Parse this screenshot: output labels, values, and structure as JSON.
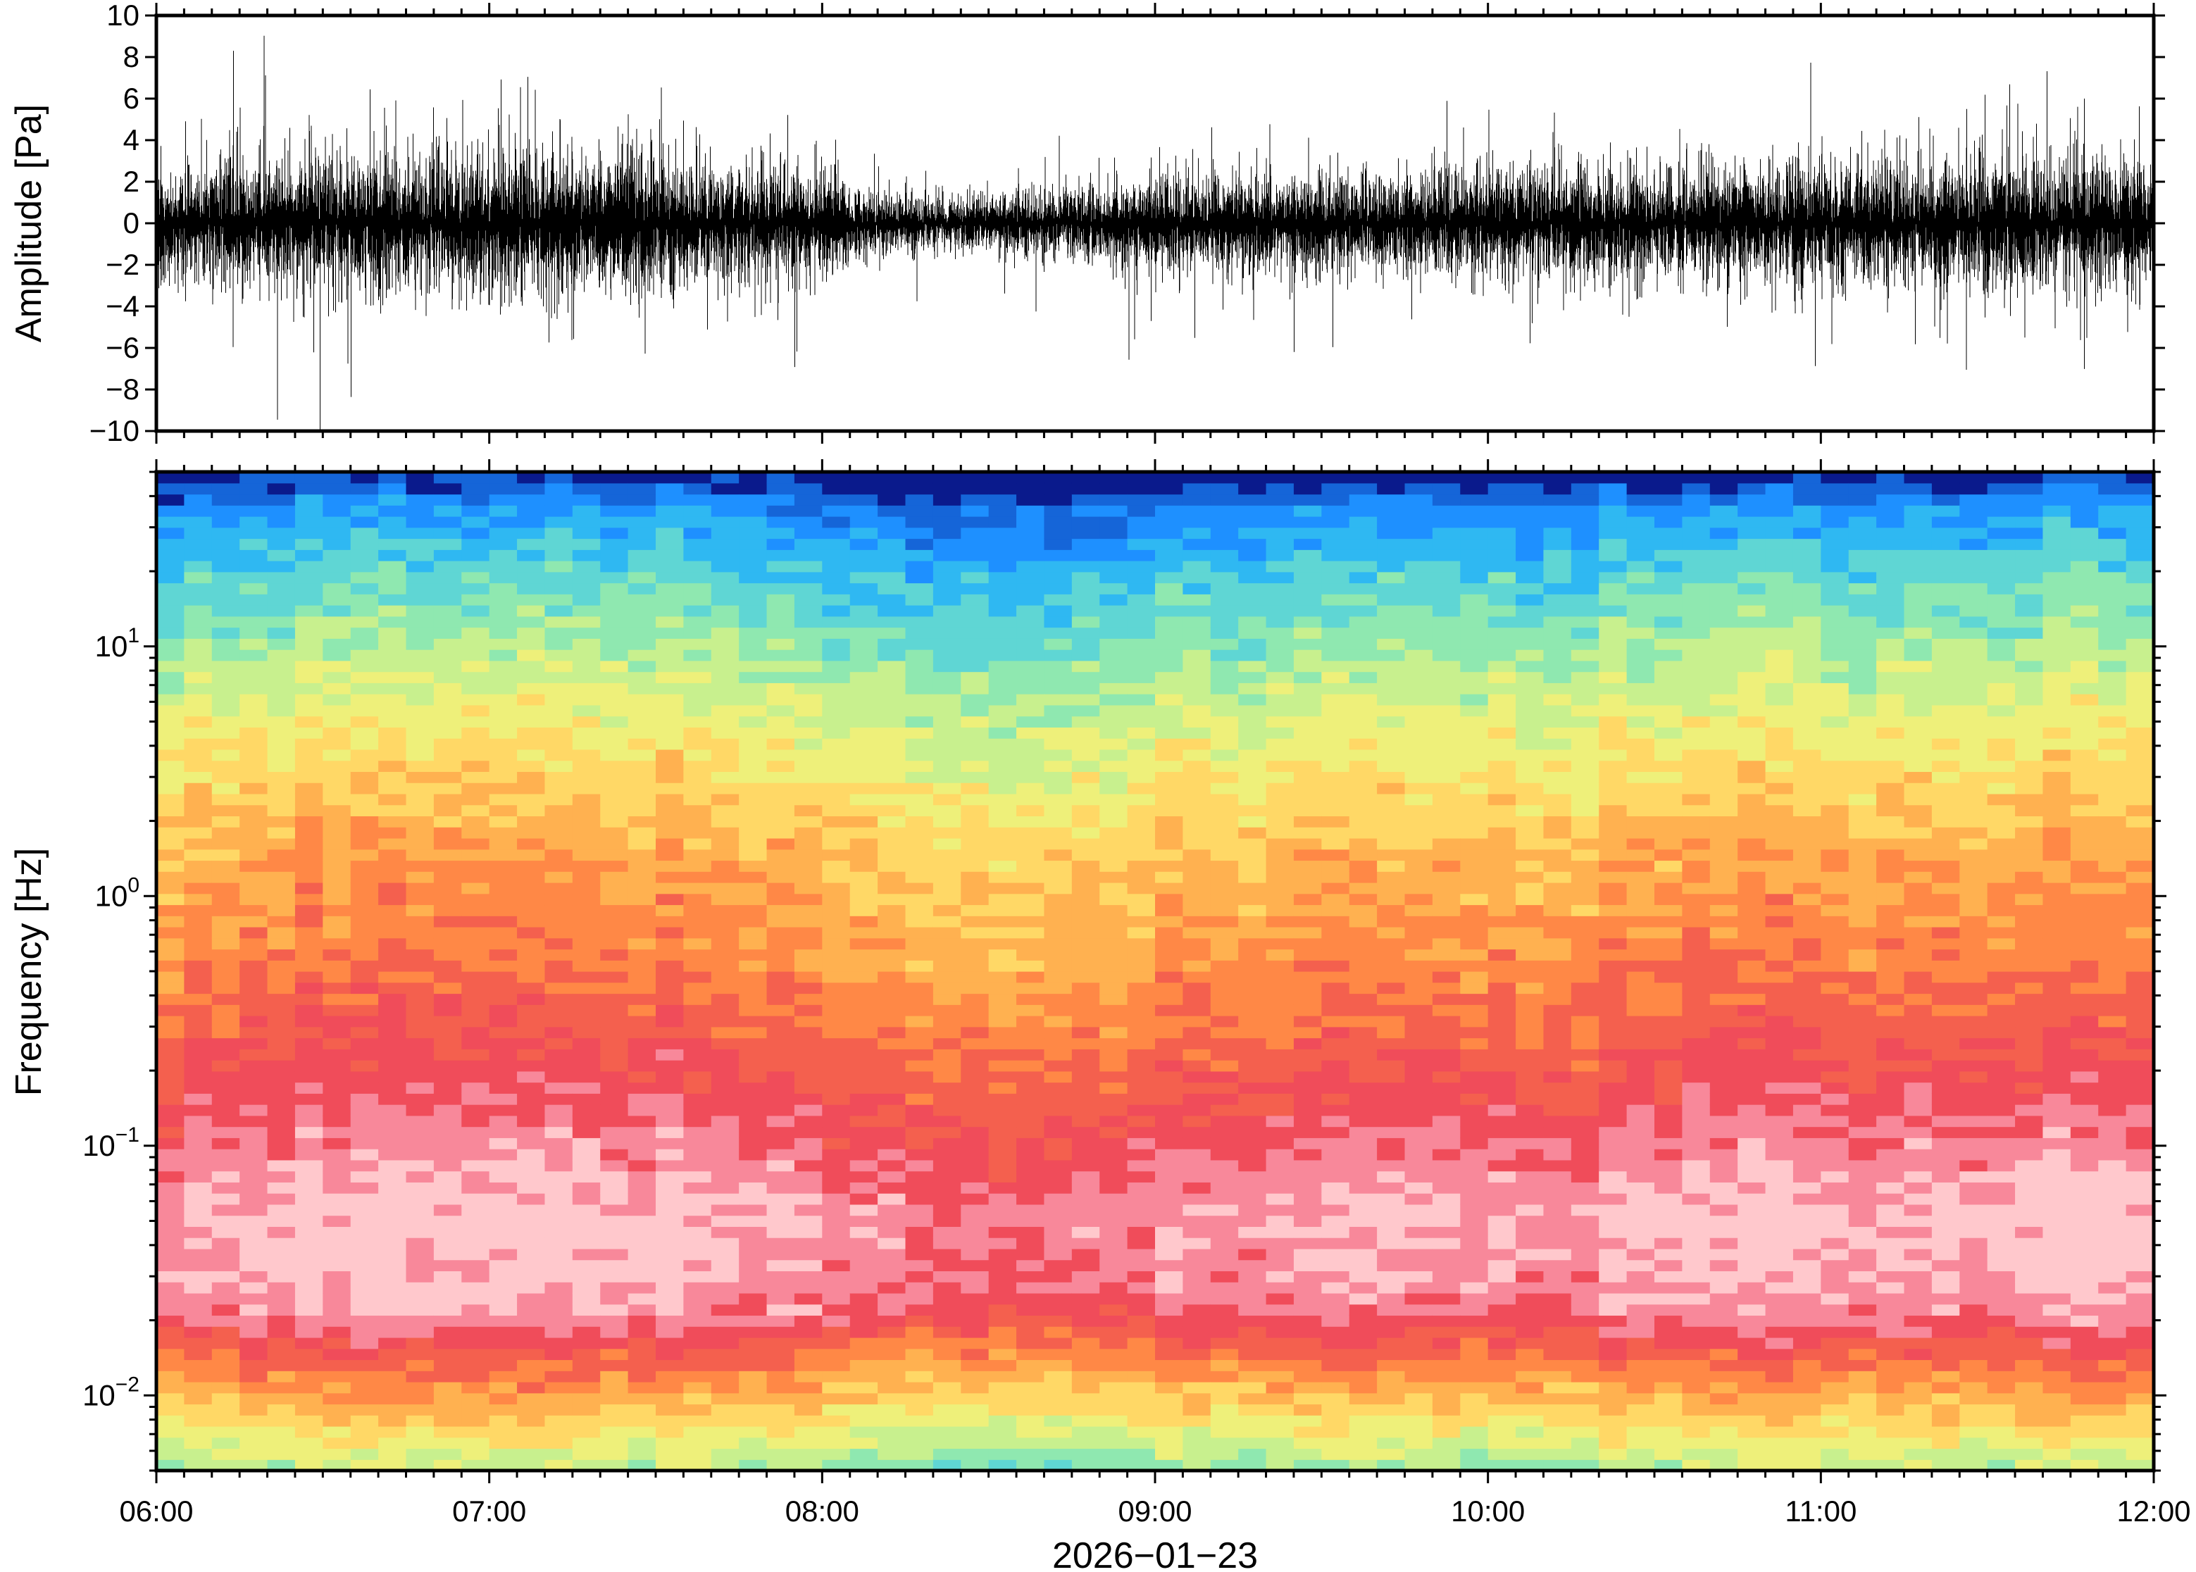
{
  "chart_data": [
    {
      "type": "line",
      "ylabel": "Amplitude [Pa]",
      "ylim": [
        -10,
        10
      ],
      "yticks": [
        10,
        8,
        6,
        4,
        2,
        0,
        -2,
        -4,
        -6,
        -8,
        -10
      ],
      "yticklabels": [
        "10",
        "8",
        "6",
        "4",
        "2",
        "0",
        "−2",
        "−4",
        "−6",
        "−8",
        "−10"
      ],
      "xlim": [
        "06:00",
        "12:00"
      ],
      "grid": false,
      "line_color": "#000000",
      "envelope": {
        "times": [
          "06:00",
          "06:15",
          "06:30",
          "06:45",
          "07:00",
          "07:15",
          "07:30",
          "07:45",
          "08:00",
          "08:15",
          "08:30",
          "08:45",
          "09:00",
          "09:15",
          "09:30",
          "09:45",
          "10:00",
          "10:15",
          "10:30",
          "10:45",
          "11:00",
          "11:15",
          "11:30",
          "11:45",
          "12:00"
        ],
        "rms_pa": [
          2.6,
          2.9,
          3.2,
          3.3,
          3.6,
          3.3,
          3.4,
          2.8,
          2.5,
          1.2,
          1.4,
          1.6,
          2.2,
          2.3,
          2.4,
          2.4,
          2.6,
          2.6,
          2.7,
          2.8,
          2.9,
          2.9,
          3.0,
          3.1,
          3.0
        ]
      }
    },
    {
      "type": "heatmap",
      "ylabel": "Frequency [Hz]",
      "yscale": "log",
      "ylim": [
        0.005,
        50
      ],
      "yticks": [
        0.01,
        0.1,
        1,
        10
      ],
      "yticklabels": [
        {
          "base": "10",
          "exp": "−2"
        },
        {
          "base": "10",
          "exp": "−1"
        },
        {
          "base": "10",
          "exp": "0"
        },
        {
          "base": "10",
          "exp": "1"
        }
      ],
      "xlim": [
        "06:00",
        "12:00"
      ],
      "xticklabels": [
        "06:00",
        "07:00",
        "08:00",
        "09:00",
        "10:00",
        "11:00",
        "12:00"
      ],
      "xlabel": "2026−01−23",
      "colormap": [
        "#0a1a8c",
        "#1565d8",
        "#1e90ff",
        "#2fb8f2",
        "#5fd6d4",
        "#8fe8b0",
        "#c8f08e",
        "#eef07a",
        "#ffd866",
        "#ffb150",
        "#ff8846",
        "#f4604e",
        "#f04c5a",
        "#f8889a",
        "#ffc8cc"
      ]
    }
  ]
}
